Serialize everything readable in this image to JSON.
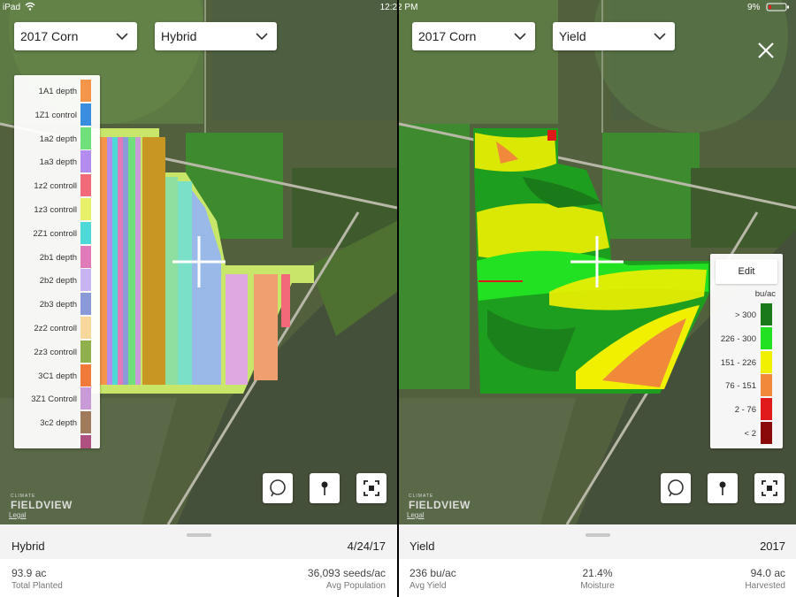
{
  "status_bar": {
    "device": "iPad",
    "time": "12:22 PM",
    "battery": "9%"
  },
  "left_pane": {
    "season": "2017 Corn",
    "layer": "Hybrid",
    "legend": [
      {
        "label": "1A1 depth",
        "color": "#f4954a"
      },
      {
        "label": "1Z1 control",
        "color": "#3b8de0"
      },
      {
        "label": "1a2 depth",
        "color": "#6fe07a"
      },
      {
        "label": "1a3 depth",
        "color": "#b48cf0"
      },
      {
        "label": "1z2 controll",
        "color": "#f2697a"
      },
      {
        "label": "1z3 controll",
        "color": "#e8f06a"
      },
      {
        "label": "2Z1 controll",
        "color": "#4fd8d8"
      },
      {
        "label": "2b1 depth",
        "color": "#e07ab8"
      },
      {
        "label": "2b2 depth",
        "color": "#c8b4f0"
      },
      {
        "label": "2b3 depth",
        "color": "#8a9ad8"
      },
      {
        "label": "2z2 controll",
        "color": "#f8d89a"
      },
      {
        "label": "2z3 controll",
        "color": "#8fb04a"
      },
      {
        "label": "3C1 depth",
        "color": "#f07a3a"
      },
      {
        "label": "3Z1 Controll",
        "color": "#c89ad8"
      },
      {
        "label": "3c2 depth",
        "color": "#a07a5a"
      }
    ],
    "brand_top": "CLIMATE",
    "brand": "FIELDVIEW",
    "legal": "Legal",
    "summary": {
      "title": "Hybrid",
      "date": "4/24/17",
      "stats": [
        {
          "value": "93.9 ac",
          "label": "Total Planted"
        },
        {
          "value": "36,093 seeds/ac",
          "label": "Avg Population"
        }
      ]
    }
  },
  "right_pane": {
    "season": "2017 Corn",
    "layer": "Yield",
    "legend_edit": "Edit",
    "legend_unit": "bu/ac",
    "legend": [
      {
        "label": "> 300",
        "color": "#1a7a1a"
      },
      {
        "label": "226 - 300",
        "color": "#22e022"
      },
      {
        "label": "151 - 226",
        "color": "#f0f000"
      },
      {
        "label": "76 - 151",
        "color": "#f08a3a"
      },
      {
        "label": "2 - 76",
        "color": "#e01a1a"
      },
      {
        "label": "< 2",
        "color": "#8a0a0a"
      }
    ],
    "brand_top": "CLIMATE",
    "brand": "FIELDVIEW",
    "legal": "Legal",
    "summary": {
      "title": "Yield",
      "date": "2017",
      "stats": [
        {
          "value": "236 bu/ac",
          "label": "Avg Yield"
        },
        {
          "value": "21.4%",
          "label": "Moisture"
        },
        {
          "value": "94.0 ac",
          "label": "Harvested"
        }
      ]
    }
  }
}
